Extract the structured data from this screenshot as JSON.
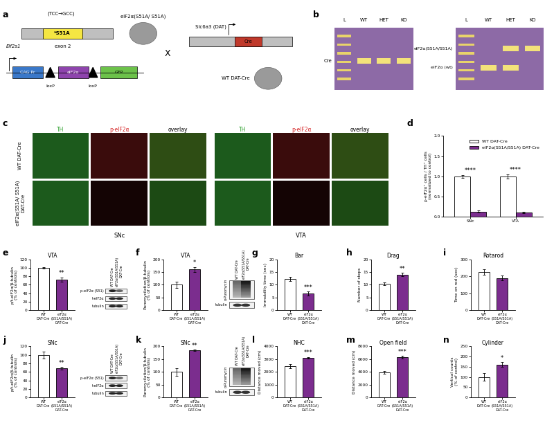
{
  "chart_data": [
    {
      "panel": "d",
      "type": "bar",
      "categories": [
        "SNc",
        "VTA"
      ],
      "series": [
        {
          "name": "WT DAT-Cre",
          "color": "#ffffff",
          "values": [
            1.0,
            1.0
          ],
          "errors": [
            0.03,
            0.05
          ]
        },
        {
          "name": "eIF2α(S51A/S51A) DAT-Cre",
          "color": "#7b2d8e",
          "values": [
            0.13,
            0.1
          ],
          "errors": [
            0.03,
            0.02
          ]
        }
      ],
      "significance": [
        "****",
        "****"
      ],
      "y_label": "p-eIF2α⁺ cells / TH⁺ cells\n(normalized to control)",
      "ylim": [
        0,
        2
      ],
      "yticks": [
        {
          "value": 0,
          "label": "0.0"
        },
        {
          "value": 0.5,
          "label": "0.5"
        },
        {
          "value": 1,
          "label": "1.0"
        },
        {
          "value": 1.5,
          "label": "1.5"
        },
        {
          "value": 2,
          "label": "2.0"
        }
      ],
      "legend": "upper right"
    },
    {
      "panel": "e",
      "type": "bar",
      "title": "VTA",
      "categories": [
        "WT\nDAT-Cre",
        "eIF2α\n(S51A/S51A)\nDAT-Cre"
      ],
      "values": [
        100,
        72
      ],
      "errors": [
        2,
        5
      ],
      "colors": [
        "#ffffff",
        "#7b2d8e"
      ],
      "significance": [
        null,
        "**"
      ],
      "y_label": "p/t-eIF2α/β-tubulin\n(% of controls)",
      "ylim": [
        0,
        120
      ],
      "yticks": [
        0,
        20,
        40,
        60,
        80,
        100,
        120
      ],
      "blot": {
        "lanes": [
          "WT DAT-Cre",
          "eIF2α(S51A/S51A)\nDAT-Cre"
        ],
        "rows": [
          "p-eIF2α (S51)",
          "t-eIF2α",
          "tubulin"
        ]
      }
    },
    {
      "panel": "f",
      "type": "bar",
      "title": "VTA",
      "categories": [
        "WT\nDAT-Cre",
        "eIF2α\n(S51A/S51A)\nDAT-Cre"
      ],
      "values": [
        100,
        160
      ],
      "errors": [
        13,
        10
      ],
      "colors": [
        "#ffffff",
        "#7b2d8e"
      ],
      "significance": [
        null,
        "*"
      ],
      "y_label": "Puromycilation/β-tubulin\n(% of controls)",
      "ylim": [
        0,
        200
      ],
      "yticks": [
        0,
        50,
        100,
        150,
        200
      ],
      "blot": {
        "lanes": [
          "WT DAT-Cre",
          "eIF2α(S51A/S51A)\nDAT-Cre"
        ],
        "top_label": "α-Puromycin",
        "rows": [
          "tubulin"
        ]
      }
    },
    {
      "panel": "g",
      "type": "bar",
      "title": "Bar",
      "categories": [
        "WT\nDAT-Cre",
        "eIF2α\n(S51A/S51A)\nDAT-Cre"
      ],
      "values": [
        12.3,
        6.5
      ],
      "errors": [
        0.8,
        0.8
      ],
      "colors": [
        "#ffffff",
        "#7b2d8e"
      ],
      "significance": [
        null,
        "***"
      ],
      "y_label": "Immobility time (sec)",
      "ylim": [
        0,
        20
      ],
      "yticks": [
        0,
        5,
        10,
        15,
        20
      ]
    },
    {
      "panel": "h",
      "type": "bar",
      "title": "Drag",
      "categories": [
        "WT\nDAT-Cre",
        "eIF2α\n(S51A/S51A)\nDAT-Cre"
      ],
      "values": [
        10.3,
        14
      ],
      "errors": [
        0.6,
        0.6
      ],
      "colors": [
        "#ffffff",
        "#7b2d8e"
      ],
      "significance": [
        null,
        "**"
      ],
      "y_label": "Number of steps",
      "ylim": [
        0,
        20
      ],
      "yticks": [
        0,
        5,
        10,
        15,
        20
      ]
    },
    {
      "panel": "i",
      "type": "bar",
      "title": "Rotarod",
      "categories": [
        "WT\nDAT-Cre",
        "eIF2α\n(S51A/S51A)\nDAT-Cre"
      ],
      "values": [
        225,
        190
      ],
      "errors": [
        18,
        15
      ],
      "colors": [
        "#ffffff",
        "#7b2d8e"
      ],
      "y_label": "Time on rod (sec)",
      "ylim": [
        0,
        300
      ],
      "yticks": [
        0,
        100,
        200,
        300
      ]
    },
    {
      "panel": "j",
      "type": "bar",
      "title": "SNc",
      "categories": [
        "WT\nDAT-Cre",
        "eIF2α\n(S51A/S51A)\nDAT-Cre"
      ],
      "values": [
        100,
        68
      ],
      "errors": [
        8,
        3
      ],
      "colors": [
        "#ffffff",
        "#7b2d8e"
      ],
      "significance": [
        null,
        "**"
      ],
      "y_label": "p/t-eIF2α/β-tubulin\n(% of controls)",
      "ylim": [
        0,
        120
      ],
      "yticks": [
        0,
        20,
        40,
        60,
        80,
        100,
        120
      ],
      "blot": {
        "lanes": [
          "WT DAT-Cre",
          "eIF2α(S51A/S51A)\nDAT-Cre"
        ],
        "rows": [
          "p-eIF2α (S51)",
          "t-eIF2α",
          "tubulin"
        ]
      }
    },
    {
      "panel": "k",
      "type": "bar",
      "title": "SNc",
      "categories": [
        "WT\nDAT-Cre",
        "eIF2α\n(S51A/S51A)\nDAT-Cre"
      ],
      "values": [
        100,
        185
      ],
      "errors": [
        15,
        2
      ],
      "colors": [
        "#ffffff",
        "#7b2d8e"
      ],
      "significance": [
        null,
        "**"
      ],
      "y_label": "Puromycilation/β-tubulin\n(% of controls)",
      "ylim": [
        0,
        200
      ],
      "yticks": [
        0,
        50,
        100,
        150,
        200
      ],
      "blot": {
        "lanes": [
          "WT DAT-Cre",
          "eIF2α(S51A/S51A)\nDAT-Cre"
        ],
        "top_label": "α-Puromycin",
        "rows": [
          "tubulin"
        ]
      }
    },
    {
      "panel": "l",
      "type": "bar",
      "title": "NHC",
      "categories": [
        "WT\nDAT-Cre",
        "eIF2α\n(S51A/S51A)\nDAT-Cre"
      ],
      "values": [
        2450,
        3100
      ],
      "errors": [
        150,
        80
      ],
      "colors": [
        "#ffffff",
        "#7b2d8e"
      ],
      "significance": [
        null,
        "***"
      ],
      "y_label": "Distance moved (cm)",
      "ylim": [
        0,
        4000
      ],
      "yticks": [
        0,
        1000,
        2000,
        3000,
        4000
      ]
    },
    {
      "panel": "m",
      "type": "bar",
      "title": "Open field",
      "categories": [
        "WT\nDAT-Cre",
        "eIF2α\n(S51A/S51A)\nDAT-Cre"
      ],
      "values": [
        3900,
        6300
      ],
      "errors": [
        250,
        200
      ],
      "colors": [
        "#ffffff",
        "#7b2d8e"
      ],
      "significance": [
        null,
        "***"
      ],
      "y_label": "Distance moved (cm)",
      "ylim": [
        0,
        8000
      ],
      "yticks": [
        0,
        2000,
        4000,
        6000,
        8000
      ]
    },
    {
      "panel": "n",
      "type": "bar",
      "title": "Cylinder",
      "categories": [
        "WT\nDAT-Cre",
        "eIF2α\n(S51A/S51A)\nDAT-Cre"
      ],
      "values": [
        100,
        160
      ],
      "errors": [
        18,
        12
      ],
      "colors": [
        "#ffffff",
        "#7b2d8e"
      ],
      "significance": [
        null,
        "*"
      ],
      "y_label": "Vertical counts\n(% of control)",
      "ylim": [
        0,
        250
      ],
      "yticks": [
        0,
        50,
        100,
        150,
        200,
        250
      ]
    }
  ],
  "diagram": {
    "panel_a": {
      "panel": "a",
      "mutation": "(TCC→GCC)",
      "mutant_box": "*S51A",
      "gene": "Eif2s1",
      "exon": "exon 2",
      "mouse_1": "eIF2α(S51A/ S51A)",
      "promoter": "CAG Pr",
      "lox": [
        "loxP",
        "loxP"
      ],
      "transgene": "eIF2α",
      "reporter": "GFP",
      "cross": "X",
      "gene_2": "Slc6a3 (DAT)",
      "cre": "Cre",
      "mouse_2": "WT DAT-Cre"
    },
    "panel_b": {
      "panel": "b",
      "lanes": [
        "L",
        "WT",
        "HET",
        "KO"
      ],
      "gel_1": [
        "Cre"
      ],
      "gel_2": [
        "eIF2α(S51A/S51A)",
        "eIF2α (wt)"
      ]
    },
    "panel_c": {
      "panel": "c",
      "columns": [
        "TH",
        "p-eIF2α",
        "overlay"
      ],
      "rows": [
        "WT DAT-Cre",
        "eIF2α(S51A/ S51A)\nDAT-Cre"
      ],
      "regions": [
        "SNc",
        "VTA"
      ]
    }
  }
}
